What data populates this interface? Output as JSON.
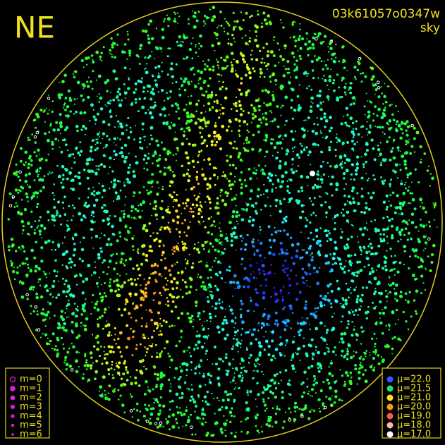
{
  "header": {
    "direction": "NE",
    "id": "03k61057o0347w",
    "mode": "sky"
  },
  "legend_m": [
    {
      "label": "m=0"
    },
    {
      "label": "m=1"
    },
    {
      "label": "m=2"
    },
    {
      "label": "m=3"
    },
    {
      "label": "m=4"
    },
    {
      "label": "m=5"
    },
    {
      "label": "m=6"
    }
  ],
  "legend_mu": [
    {
      "label": "μ=22.0",
      "color": "#2a5cff"
    },
    {
      "label": "μ=21.5",
      "color": "#22e070"
    },
    {
      "label": "μ=21.0",
      "color": "#ffe020"
    },
    {
      "label": "μ=20.0",
      "color": "#ff9a10"
    },
    {
      "label": "μ=19.0",
      "color": "#ff5a40"
    },
    {
      "label": "μ=18.0",
      "color": "#ffb4b4"
    },
    {
      "label": "μ=17.0",
      "color": "#ffffff"
    }
  ]
}
